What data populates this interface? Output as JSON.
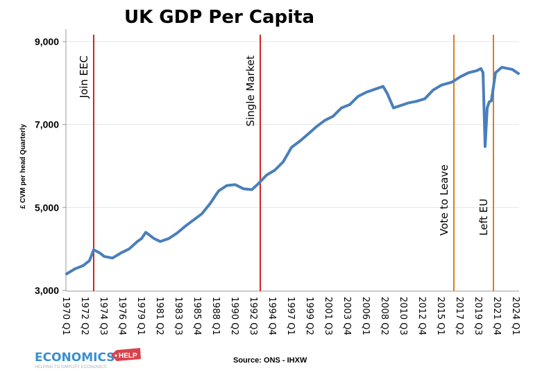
{
  "chart_data": {
    "type": "line",
    "title": "UK GDP Per Capita",
    "xlabel": "",
    "ylabel": "£ CVM per head Quarterly",
    "ylim": [
      3000,
      9000
    ],
    "yticks": [
      "3,000",
      "5,000",
      "7,000",
      "9,000"
    ],
    "ytick_values": [
      3000,
      5000,
      7000,
      9000
    ],
    "xlim": [
      "1970 Q1",
      "2024 Q2"
    ],
    "xtick_labels": [
      "1970 Q1",
      "1972 Q2",
      "1974 Q3",
      "1976 Q4",
      "1979 Q1",
      "1981 Q2",
      "1983 Q3",
      "1985 Q4",
      "1988 Q1",
      "1990 Q2",
      "1992 Q3",
      "1994 Q4",
      "1997 Q1",
      "1999 Q2",
      "2001 Q3",
      "2003 Q4",
      "2006 Q1",
      "2008 Q2",
      "2010 Q3",
      "2012 Q4",
      "2015 Q1",
      "2017 Q2",
      "2019 Q3",
      "2021 Q4",
      "2024 Q1"
    ],
    "grid": "horizontal",
    "line_color": "#4a7ebb",
    "series": [
      {
        "x": [
          "1970 Q1",
          "1971 Q1",
          "1972 Q1",
          "1972 Q4",
          "1973 Q2",
          "1974 Q1",
          "1974 Q3",
          "1975 Q3",
          "1976 Q3",
          "1977 Q3",
          "1978 Q3",
          "1979 Q1",
          "1979 Q3",
          "1980 Q3",
          "1981 Q2",
          "1982 Q2",
          "1983 Q2",
          "1984 Q2",
          "1985 Q2",
          "1986 Q2",
          "1987 Q2",
          "1988 Q2",
          "1989 Q2",
          "1990 Q2",
          "1991 Q2",
          "1992 Q2",
          "1993 Q1",
          "1994 Q1",
          "1995 Q1",
          "1996 Q1",
          "1997 Q1",
          "1998 Q1",
          "1999 Q1",
          "2000 Q1",
          "2001 Q1",
          "2002 Q1",
          "2003 Q1",
          "2004 Q1",
          "2005 Q1",
          "2006 Q1",
          "2007 Q1",
          "2008 Q1",
          "2008 Q3",
          "2009 Q2",
          "2010 Q1",
          "2011 Q1",
          "2012 Q1",
          "2013 Q1",
          "2014 Q1",
          "2015 Q1",
          "2016 Q2",
          "2017 Q2",
          "2018 Q2",
          "2019 Q2",
          "2019 Q4",
          "2020 Q1",
          "2020 Q2",
          "2020 Q3",
          "2020 Q4",
          "2021 Q1",
          "2021 Q3",
          "2022 Q2",
          "2023 Q1",
          "2023 Q3",
          "2024 Q2"
        ],
        "values": [
          3400,
          3520,
          3600,
          3720,
          3980,
          3900,
          3820,
          3780,
          3900,
          4000,
          4180,
          4250,
          4400,
          4250,
          4180,
          4250,
          4380,
          4550,
          4700,
          4850,
          5100,
          5400,
          5530,
          5550,
          5450,
          5430,
          5570,
          5780,
          5900,
          6100,
          6450,
          6600,
          6770,
          6950,
          7100,
          7200,
          7400,
          7480,
          7680,
          7780,
          7850,
          7920,
          7750,
          7400,
          7450,
          7520,
          7560,
          7620,
          7830,
          7950,
          8020,
          8150,
          8250,
          8300,
          8350,
          8250,
          6470,
          7400,
          7550,
          7570,
          8250,
          8380,
          8350,
          8330,
          8230
        ]
      }
    ],
    "annotations": [
      {
        "label": "Join EEC",
        "x": "1973 Q1",
        "color": "#d62020"
      },
      {
        "label": "Single Market",
        "x": "1993 Q1",
        "color": "#d62020"
      },
      {
        "label": "Vote to Leave",
        "x": "2016 Q2",
        "color": "#e07b1a"
      },
      {
        "label": "Left EU",
        "x": "2021 Q1",
        "color": "#e07b1a"
      }
    ]
  },
  "source": "Source: ONS - IHXW",
  "logo": {
    "main": "ECONOMICS",
    "badge": "HELP",
    "tagline": "HELPING TO SIMPLIFY ECONOMICS"
  }
}
